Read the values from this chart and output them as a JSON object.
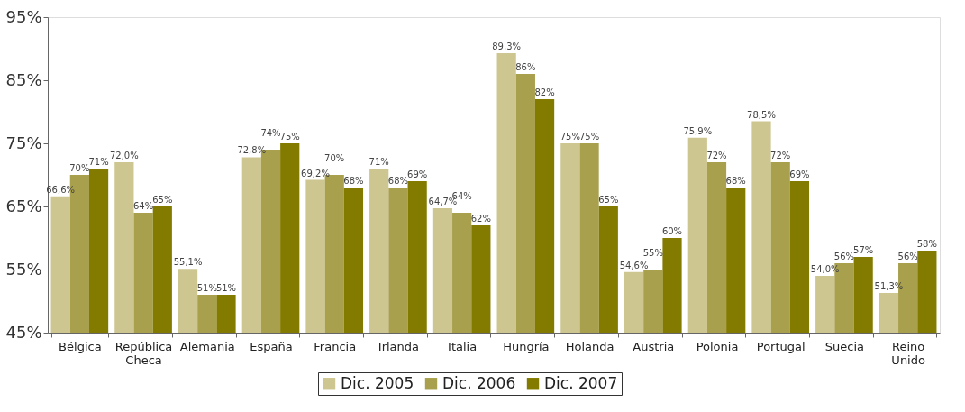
{
  "chart_data": {
    "type": "bar",
    "categories": [
      "Bélgica",
      "República Checa",
      "Alemania",
      "España",
      "Francia",
      "Irlanda",
      "Italia",
      "Hungría",
      "Holanda",
      "Austria",
      "Polonia",
      "Portugal",
      "Suecia",
      "Reino Unido"
    ],
    "series": [
      {
        "name": "Dic. 2005",
        "color": "#cdc690",
        "values": [
          66.6,
          72.0,
          55.1,
          72.8,
          69.2,
          71,
          64.7,
          89.3,
          75,
          54.6,
          75.9,
          78.5,
          54.0,
          51.3
        ],
        "value_labels": [
          "66,6%",
          "72,0%",
          "55,1%",
          "72,8%",
          "69,2%",
          "71%",
          "64,7%",
          "89,3%",
          "75%",
          "54,6%",
          "75,9%",
          "78,5%",
          "54,0%",
          "51,3%"
        ]
      },
      {
        "name": "Dic. 2006",
        "color": "#a8a04c",
        "values": [
          70,
          64,
          51,
          74,
          70,
          68,
          64,
          86,
          75,
          55,
          72,
          72,
          56,
          56
        ],
        "value_labels": [
          "70%",
          "64%",
          "51%",
          "74%",
          "70%",
          "68%",
          "64%",
          "86%",
          "75%",
          "55%",
          "72%",
          "72%",
          "56%",
          "56%"
        ]
      },
      {
        "name": "Dic. 2007",
        "color": "#837b00",
        "values": [
          71,
          65,
          51,
          75,
          68,
          69,
          62,
          82,
          65,
          60,
          68,
          69,
          57,
          58
        ],
        "value_labels": [
          "71%",
          "65%",
          "51%",
          "75%",
          "68%",
          "69%",
          "62%",
          "82%",
          "65%",
          "60%",
          "68%",
          "69%",
          "57%",
          "58%"
        ]
      }
    ],
    "ylim": [
      45,
      95
    ],
    "yticks": [
      {
        "value": 45,
        "label": "45%"
      },
      {
        "value": 55,
        "label": "55%"
      },
      {
        "value": 65,
        "label": "65%"
      },
      {
        "value": 75,
        "label": "75%"
      },
      {
        "value": 85,
        "label": "85%"
      },
      {
        "value": 95,
        "label": "95%"
      }
    ],
    "grid": false,
    "legend": "bottom"
  }
}
